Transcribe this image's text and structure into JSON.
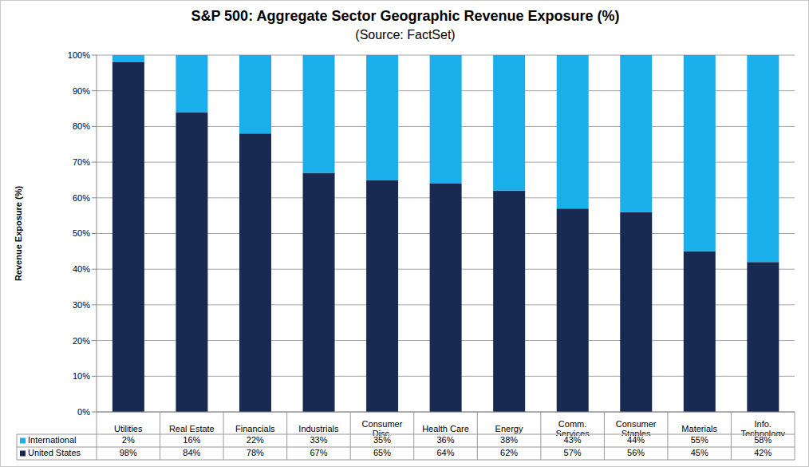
{
  "chart_data": {
    "type": "bar",
    "title": "S&P 500: Aggregate Sector Geographic Revenue Exposure (%)",
    "subtitle": "(Source: FactSet)",
    "y_label": "Revenue Exposure (%)",
    "categories": [
      "Utilities",
      "Real Estate",
      "Financials",
      "Industrials",
      "Consumer Disc.",
      "Health Care",
      "Energy",
      "Comm. Services",
      "Consumer Staples",
      "Materials",
      "Info. Technology"
    ],
    "series": [
      {
        "name": "International",
        "color": "#1aaeea",
        "values": [
          2,
          16,
          22,
          33,
          35,
          36,
          38,
          43,
          44,
          55,
          58
        ],
        "value_labels": [
          "2%",
          "16%",
          "22%",
          "33%",
          "35%",
          "36%",
          "38%",
          "43%",
          "44%",
          "55%",
          "58%"
        ]
      },
      {
        "name": "United States",
        "color": "#182a52",
        "values": [
          98,
          84,
          78,
          67,
          65,
          64,
          62,
          57,
          56,
          45,
          42
        ],
        "value_labels": [
          "98%",
          "84%",
          "78%",
          "67%",
          "65%",
          "64%",
          "62%",
          "57%",
          "56%",
          "45%",
          "42%"
        ]
      }
    ],
    "ylim": [
      0,
      100
    ],
    "yticks": [
      {
        "value": 0,
        "label": "0%"
      },
      {
        "value": 10,
        "label": "10%"
      },
      {
        "value": 20,
        "label": "20%"
      },
      {
        "value": 30,
        "label": "30%"
      },
      {
        "value": 40,
        "label": "40%"
      },
      {
        "value": 50,
        "label": "50%"
      },
      {
        "value": 60,
        "label": "60%"
      },
      {
        "value": 70,
        "label": "70%"
      },
      {
        "value": 80,
        "label": "80%"
      },
      {
        "value": 90,
        "label": "90%"
      },
      {
        "value": 100,
        "label": "100%"
      }
    ],
    "grid": true,
    "stacked": true
  }
}
